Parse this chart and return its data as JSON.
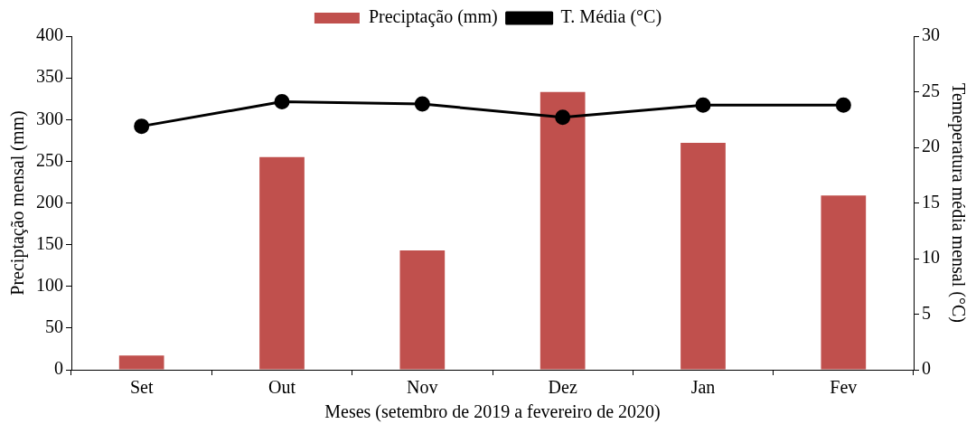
{
  "chart_data": {
    "type": "bar",
    "xlabel": "Meses (setembro de 2019 a fevereiro de 2020)",
    "ylabel": "Preciptação mensal (mm)",
    "y2label": "Temeperatura média mensal (°C)",
    "categories": [
      "Set",
      "Out",
      "Nov",
      "Dez",
      "Jan",
      "Fev"
    ],
    "series": [
      {
        "name": "Preciptação (mm)",
        "color": "#c0504d",
        "values": [
          17,
          255,
          143,
          333,
          272,
          209
        ]
      },
      {
        "name": "T. Média (°C)",
        "type": "line",
        "axis": "y2",
        "color": "#000000",
        "marker": "circle",
        "line_style": "solid",
        "values": [
          21.9,
          24.1,
          23.9,
          22.7,
          23.8,
          23.8
        ]
      }
    ],
    "ylim": [
      0,
      400
    ],
    "yticks": [
      0,
      50,
      100,
      150,
      200,
      250,
      300,
      350,
      400
    ],
    "y2lim": [
      0,
      30
    ],
    "y2ticks": [
      0,
      5,
      10,
      15,
      20,
      25,
      30
    ],
    "grid": false,
    "legend": "top"
  }
}
